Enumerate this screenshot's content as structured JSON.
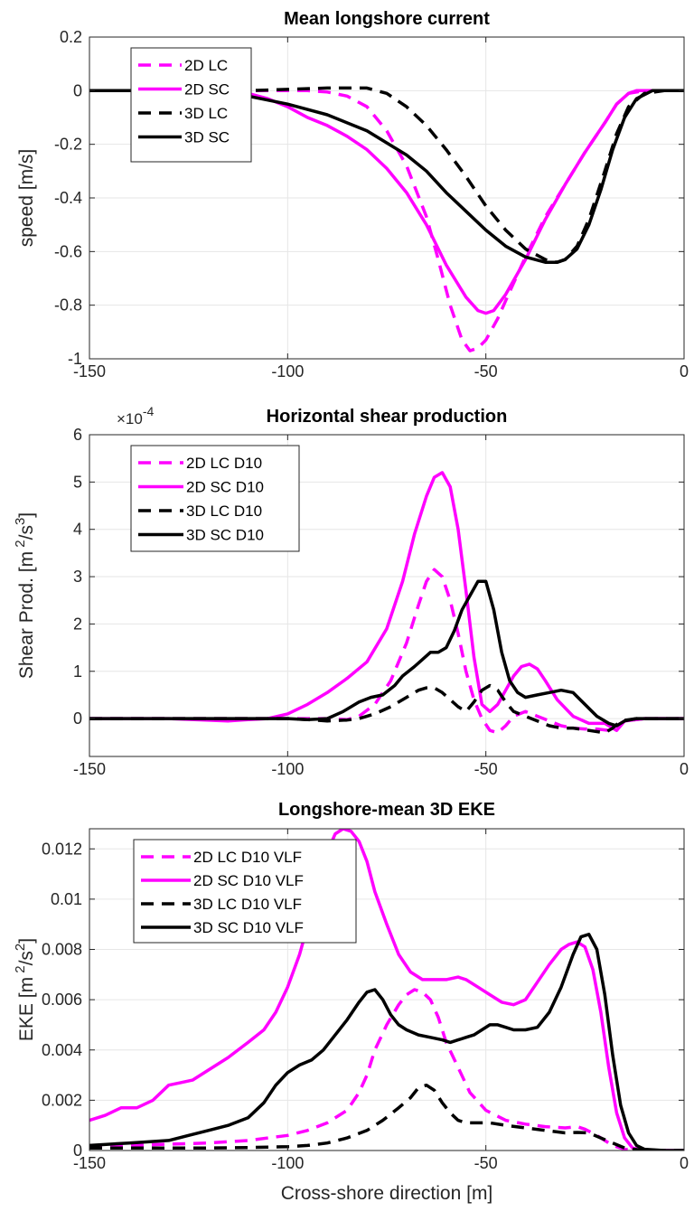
{
  "chart_data": [
    {
      "type": "line",
      "title": "Mean longshore current",
      "xlabel": "",
      "ylabel": "speed [m/s]",
      "xlim": [
        -150,
        0
      ],
      "ylim": [
        -1,
        0.2
      ],
      "xticks": [
        -150,
        -100,
        -50,
        0
      ],
      "xtick_labels": [
        "-150",
        "-100",
        "-50",
        "0"
      ],
      "yticks": [
        -1,
        -0.8,
        -0.6,
        -0.4,
        -0.2,
        0,
        0.2
      ],
      "ytick_labels": [
        "-1",
        "-0.8",
        "-0.6",
        "-0.4",
        "-0.2",
        "0",
        "0.2"
      ],
      "grid": true,
      "legend_position": "top-left",
      "series": [
        {
          "name": "2D LC",
          "color": "#ff00ff",
          "style": "dashed",
          "x": [
            -150,
            -130,
            -110,
            -100,
            -95,
            -90,
            -85,
            -80,
            -75,
            -70,
            -65,
            -62,
            -59,
            -56,
            -54,
            -52,
            -50,
            -47,
            -44,
            -40,
            -35,
            -30,
            -25,
            -20,
            -17,
            -14,
            -10,
            -5,
            0
          ],
          "y": [
            0,
            0,
            0,
            0,
            0,
            -0.005,
            -0.02,
            -0.06,
            -0.15,
            -0.28,
            -0.47,
            -0.63,
            -0.8,
            -0.93,
            -0.97,
            -0.96,
            -0.93,
            -0.85,
            -0.75,
            -0.62,
            -0.47,
            -0.35,
            -0.23,
            -0.12,
            -0.05,
            -0.01,
            0,
            0,
            0
          ]
        },
        {
          "name": "2D SC",
          "color": "#ff00ff",
          "style": "solid",
          "x": [
            -150,
            -130,
            -120,
            -110,
            -105,
            -100,
            -95,
            -90,
            -85,
            -80,
            -75,
            -70,
            -65,
            -60,
            -55,
            -52,
            -50,
            -48,
            -45,
            -40,
            -35,
            -30,
            -25,
            -20,
            -17,
            -14,
            -12,
            -10,
            -5,
            0
          ],
          "y": [
            0,
            0,
            0,
            -0.01,
            -0.03,
            -0.06,
            -0.1,
            -0.13,
            -0.17,
            -0.22,
            -0.29,
            -0.38,
            -0.5,
            -0.65,
            -0.77,
            -0.82,
            -0.83,
            -0.82,
            -0.76,
            -0.63,
            -0.48,
            -0.35,
            -0.23,
            -0.12,
            -0.05,
            -0.01,
            0,
            0,
            0,
            0
          ]
        },
        {
          "name": "3D LC",
          "color": "#000000",
          "style": "dashed",
          "x": [
            -150,
            -130,
            -110,
            -100,
            -90,
            -80,
            -75,
            -70,
            -65,
            -60,
            -55,
            -50,
            -45,
            -40,
            -35,
            -32,
            -30,
            -27,
            -24,
            -20,
            -17,
            -14,
            -10,
            -5,
            0
          ],
          "y": [
            0,
            0,
            0,
            0.005,
            0.01,
            0.01,
            -0.01,
            -0.06,
            -0.13,
            -0.22,
            -0.32,
            -0.43,
            -0.52,
            -0.59,
            -0.63,
            -0.64,
            -0.63,
            -0.58,
            -0.48,
            -0.3,
            -0.16,
            -0.06,
            -0.01,
            0,
            0
          ]
        },
        {
          "name": "3D SC",
          "color": "#000000",
          "style": "solid",
          "x": [
            -150,
            -130,
            -120,
            -110,
            -100,
            -90,
            -80,
            -70,
            -65,
            -60,
            -55,
            -50,
            -45,
            -40,
            -35,
            -32,
            -30,
            -27,
            -24,
            -21,
            -18,
            -15,
            -12,
            -8,
            -4,
            0
          ],
          "y": [
            0,
            0,
            -0.005,
            -0.02,
            -0.05,
            -0.09,
            -0.15,
            -0.24,
            -0.3,
            -0.38,
            -0.45,
            -0.52,
            -0.58,
            -0.62,
            -0.64,
            -0.64,
            -0.63,
            -0.59,
            -0.5,
            -0.37,
            -0.22,
            -0.1,
            -0.03,
            0,
            0,
            0
          ]
        }
      ]
    },
    {
      "type": "line",
      "title": "Horizontal shear production",
      "xlabel": "",
      "ylabel": "Shear Prod. [m",
      "ylabel_sup": "2",
      "ylabel_mid": "/s",
      "ylabel_sup2": "3",
      "ylabel_end": "]",
      "exponent_base": "×10",
      "exponent_power": "-4",
      "xlim": [
        -150,
        0
      ],
      "ylim": [
        -0.8,
        6
      ],
      "xticks": [
        -150,
        -100,
        -50,
        0
      ],
      "xtick_labels": [
        "-150",
        "-100",
        "-50",
        "0"
      ],
      "yticks": [
        0,
        1,
        2,
        3,
        4,
        5,
        6
      ],
      "ytick_labels": [
        "0",
        "1",
        "2",
        "3",
        "4",
        "5",
        "6"
      ],
      "grid": true,
      "legend_position": "top-left",
      "series": [
        {
          "name": "2D LC D10",
          "color": "#ff00ff",
          "style": "dashed",
          "x": [
            -150,
            -100,
            -90,
            -85,
            -82,
            -78,
            -74,
            -70,
            -67,
            -65,
            -63,
            -61,
            -59,
            -57,
            -55,
            -53,
            -51,
            -49,
            -47,
            -45,
            -43,
            -40,
            -37,
            -34,
            -31,
            -28,
            -25,
            -22,
            -19,
            -17,
            -15,
            -10,
            0
          ],
          "y": [
            0,
            0,
            0,
            -0.02,
            0.05,
            0.3,
            0.8,
            1.6,
            2.4,
            2.9,
            3.15,
            3.0,
            2.5,
            1.8,
            1.0,
            0.4,
            0.0,
            -0.25,
            -0.3,
            -0.15,
            0.05,
            0.15,
            0.05,
            -0.05,
            -0.15,
            -0.2,
            -0.22,
            -0.22,
            -0.25,
            -0.15,
            -0.05,
            0,
            0
          ]
        },
        {
          "name": "2D SC D10",
          "color": "#ff00ff",
          "style": "solid",
          "x": [
            -150,
            -130,
            -115,
            -110,
            -105,
            -100,
            -95,
            -90,
            -85,
            -80,
            -75,
            -71,
            -68,
            -65,
            -63,
            -61,
            -59,
            -57,
            -55,
            -53,
            -51,
            -49,
            -47,
            -45,
            -43,
            -41,
            -39,
            -37,
            -35,
            -32,
            -28,
            -24,
            -20,
            -17,
            -15,
            -10,
            0
          ],
          "y": [
            0,
            0,
            -0.05,
            -0.02,
            0,
            0.1,
            0.3,
            0.55,
            0.85,
            1.2,
            1.9,
            2.9,
            3.9,
            4.7,
            5.1,
            5.2,
            4.9,
            4.0,
            2.7,
            1.3,
            0.3,
            0.15,
            0.3,
            0.6,
            0.9,
            1.1,
            1.15,
            1.05,
            0.8,
            0.4,
            0.05,
            -0.1,
            -0.1,
            -0.25,
            -0.05,
            0,
            0
          ]
        },
        {
          "name": "3D LC D10",
          "color": "#000000",
          "style": "dashed",
          "x": [
            -150,
            -100,
            -95,
            -90,
            -85,
            -82,
            -78,
            -74,
            -70,
            -67,
            -65,
            -63,
            -61,
            -59,
            -57,
            -55,
            -53,
            -51,
            -49,
            -47,
            -45,
            -43,
            -40,
            -37,
            -34,
            -31,
            -28,
            -24,
            -20,
            -18,
            -16,
            -12,
            0
          ],
          "y": [
            0,
            0,
            -0.02,
            -0.05,
            -0.03,
            0,
            0.1,
            0.25,
            0.45,
            0.6,
            0.65,
            0.65,
            0.55,
            0.4,
            0.25,
            0.15,
            0.35,
            0.6,
            0.7,
            0.6,
            0.35,
            0.15,
            0.05,
            -0.05,
            -0.15,
            -0.2,
            -0.2,
            -0.25,
            -0.3,
            -0.2,
            -0.05,
            0,
            0
          ]
        },
        {
          "name": "3D SC D10",
          "color": "#000000",
          "style": "solid",
          "x": [
            -150,
            -100,
            -95,
            -90,
            -86,
            -82,
            -79,
            -76,
            -73,
            -71,
            -68,
            -66,
            -64,
            -62,
            -60,
            -58,
            -56,
            -54,
            -52,
            -50,
            -48,
            -46,
            -44,
            -42,
            -40,
            -37,
            -34,
            -31,
            -28,
            -25,
            -22,
            -19,
            -17,
            -15,
            -12,
            0
          ],
          "y": [
            0,
            0,
            -0.02,
            0,
            0.15,
            0.35,
            0.45,
            0.5,
            0.7,
            0.9,
            1.1,
            1.25,
            1.4,
            1.4,
            1.5,
            1.85,
            2.3,
            2.6,
            2.9,
            2.9,
            2.3,
            1.4,
            0.8,
            0.55,
            0.45,
            0.5,
            0.55,
            0.6,
            0.55,
            0.3,
            0.05,
            -0.1,
            -0.15,
            -0.05,
            0,
            0
          ]
        }
      ]
    },
    {
      "type": "line",
      "title": "Longshore-mean 3D EKE",
      "xlabel": "Cross-shore direction [m]",
      "ylabel": "EKE [m",
      "ylabel_sup": "2",
      "ylabel_mid": "/s",
      "ylabel_sup2": "2",
      "ylabel_end": "]",
      "xlim": [
        -150,
        0
      ],
      "ylim": [
        0,
        0.0128
      ],
      "xticks": [
        -150,
        -100,
        -50,
        0
      ],
      "xtick_labels": [
        "-150",
        "-100",
        "-50",
        "0"
      ],
      "yticks": [
        0,
        0.002,
        0.004,
        0.006,
        0.008,
        0.01,
        0.012
      ],
      "ytick_labels": [
        "0",
        "0.002",
        "0.004",
        "0.006",
        "0.008",
        "0.01",
        "0.012"
      ],
      "grid": true,
      "legend_position": "top-left",
      "series": [
        {
          "name": "2D LC D10 VLF",
          "color": "#ff00ff",
          "style": "dashed",
          "x": [
            -150,
            -140,
            -130,
            -120,
            -110,
            -100,
            -95,
            -90,
            -85,
            -82,
            -80,
            -78,
            -75,
            -72,
            -70,
            -68,
            -66,
            -64,
            -62,
            -60,
            -57,
            -54,
            -50,
            -45,
            -40,
            -35,
            -30,
            -27,
            -25,
            -22,
            -20,
            -18,
            -15,
            -10,
            0
          ],
          "y": [
            0.00015,
            0.0002,
            0.00025,
            0.0003,
            0.0004,
            0.0006,
            0.0008,
            0.0011,
            0.0016,
            0.0023,
            0.003,
            0.004,
            0.005,
            0.0058,
            0.0062,
            0.0064,
            0.0063,
            0.006,
            0.0053,
            0.0043,
            0.0033,
            0.0023,
            0.0016,
            0.0012,
            0.00105,
            0.00095,
            0.0009,
            0.00095,
            0.00085,
            0.0006,
            0.0004,
            0.0002,
            5e-05,
            0,
            0
          ]
        },
        {
          "name": "2D SC D10 VLF",
          "color": "#ff00ff",
          "style": "solid",
          "x": [
            -150,
            -146,
            -142,
            -138,
            -134,
            -130,
            -127,
            -124,
            -120,
            -115,
            -110,
            -106,
            -103,
            -100,
            -97,
            -94,
            -91,
            -88,
            -86,
            -84,
            -82,
            -80,
            -78,
            -75,
            -72,
            -69,
            -66,
            -63,
            -60,
            -57,
            -55,
            -52,
            -49,
            -46,
            -43,
            -40,
            -37,
            -34,
            -31,
            -29,
            -27,
            -25,
            -23,
            -21,
            -19,
            -17,
            -15,
            -13,
            -10,
            -5,
            0
          ],
          "y": [
            0.0012,
            0.0014,
            0.0017,
            0.0017,
            0.002,
            0.0026,
            0.0027,
            0.0028,
            0.0032,
            0.0037,
            0.0043,
            0.0048,
            0.0055,
            0.0065,
            0.0078,
            0.0095,
            0.0115,
            0.0126,
            0.0128,
            0.0127,
            0.0123,
            0.0115,
            0.0103,
            0.009,
            0.0078,
            0.0071,
            0.0068,
            0.0068,
            0.0068,
            0.0069,
            0.0068,
            0.0065,
            0.0062,
            0.0059,
            0.0058,
            0.006,
            0.0067,
            0.0074,
            0.008,
            0.0082,
            0.0083,
            0.0081,
            0.0072,
            0.0055,
            0.0033,
            0.0015,
            0.0005,
            0.0001,
            0,
            0,
            0
          ]
        },
        {
          "name": "3D LC D10 VLF",
          "color": "#000000",
          "style": "dashed",
          "x": [
            -150,
            -140,
            -130,
            -120,
            -110,
            -100,
            -95,
            -90,
            -85,
            -80,
            -76,
            -72,
            -69,
            -67,
            -65,
            -63,
            -61,
            -59,
            -57,
            -55,
            -52,
            -49,
            -45,
            -40,
            -35,
            -30,
            -27,
            -24,
            -21,
            -18,
            -15,
            -10,
            0
          ],
          "y": [
            0.0001,
            0.0001,
            0.0001,
            0.0001,
            0.00012,
            0.00015,
            0.0002,
            0.0003,
            0.0005,
            0.0008,
            0.0012,
            0.0017,
            0.0021,
            0.0025,
            0.0026,
            0.0024,
            0.0019,
            0.0015,
            0.0012,
            0.0011,
            0.0011,
            0.0011,
            0.001,
            0.0009,
            0.0008,
            0.0007,
            0.00072,
            0.0007,
            0.0005,
            0.0003,
            0.0001,
            0,
            0
          ]
        },
        {
          "name": "3D SC D10 VLF",
          "color": "#000000",
          "style": "solid",
          "x": [
            -150,
            -140,
            -130,
            -125,
            -120,
            -115,
            -110,
            -106,
            -103,
            -100,
            -97,
            -94,
            -91,
            -88,
            -85,
            -82,
            -80,
            -78,
            -76,
            -74,
            -72,
            -70,
            -67,
            -64,
            -61,
            -59,
            -57,
            -55,
            -53,
            -51,
            -49,
            -47,
            -45,
            -43,
            -40,
            -37,
            -34,
            -31,
            -28,
            -26,
            -24,
            -22,
            -20,
            -18,
            -16,
            -14,
            -12,
            -10,
            -5,
            0
          ],
          "y": [
            0.0002,
            0.0003,
            0.0004,
            0.0006,
            0.0008,
            0.001,
            0.0013,
            0.0019,
            0.0026,
            0.0031,
            0.0034,
            0.0036,
            0.004,
            0.0046,
            0.0052,
            0.0059,
            0.0063,
            0.0064,
            0.006,
            0.0054,
            0.005,
            0.0048,
            0.0046,
            0.0045,
            0.0044,
            0.0043,
            0.0044,
            0.0045,
            0.0046,
            0.0048,
            0.005,
            0.005,
            0.0049,
            0.0048,
            0.0048,
            0.0049,
            0.0055,
            0.0065,
            0.0078,
            0.0085,
            0.0086,
            0.008,
            0.0062,
            0.0038,
            0.0018,
            0.0007,
            0.0002,
            5e-05,
            0,
            0
          ]
        }
      ]
    }
  ]
}
